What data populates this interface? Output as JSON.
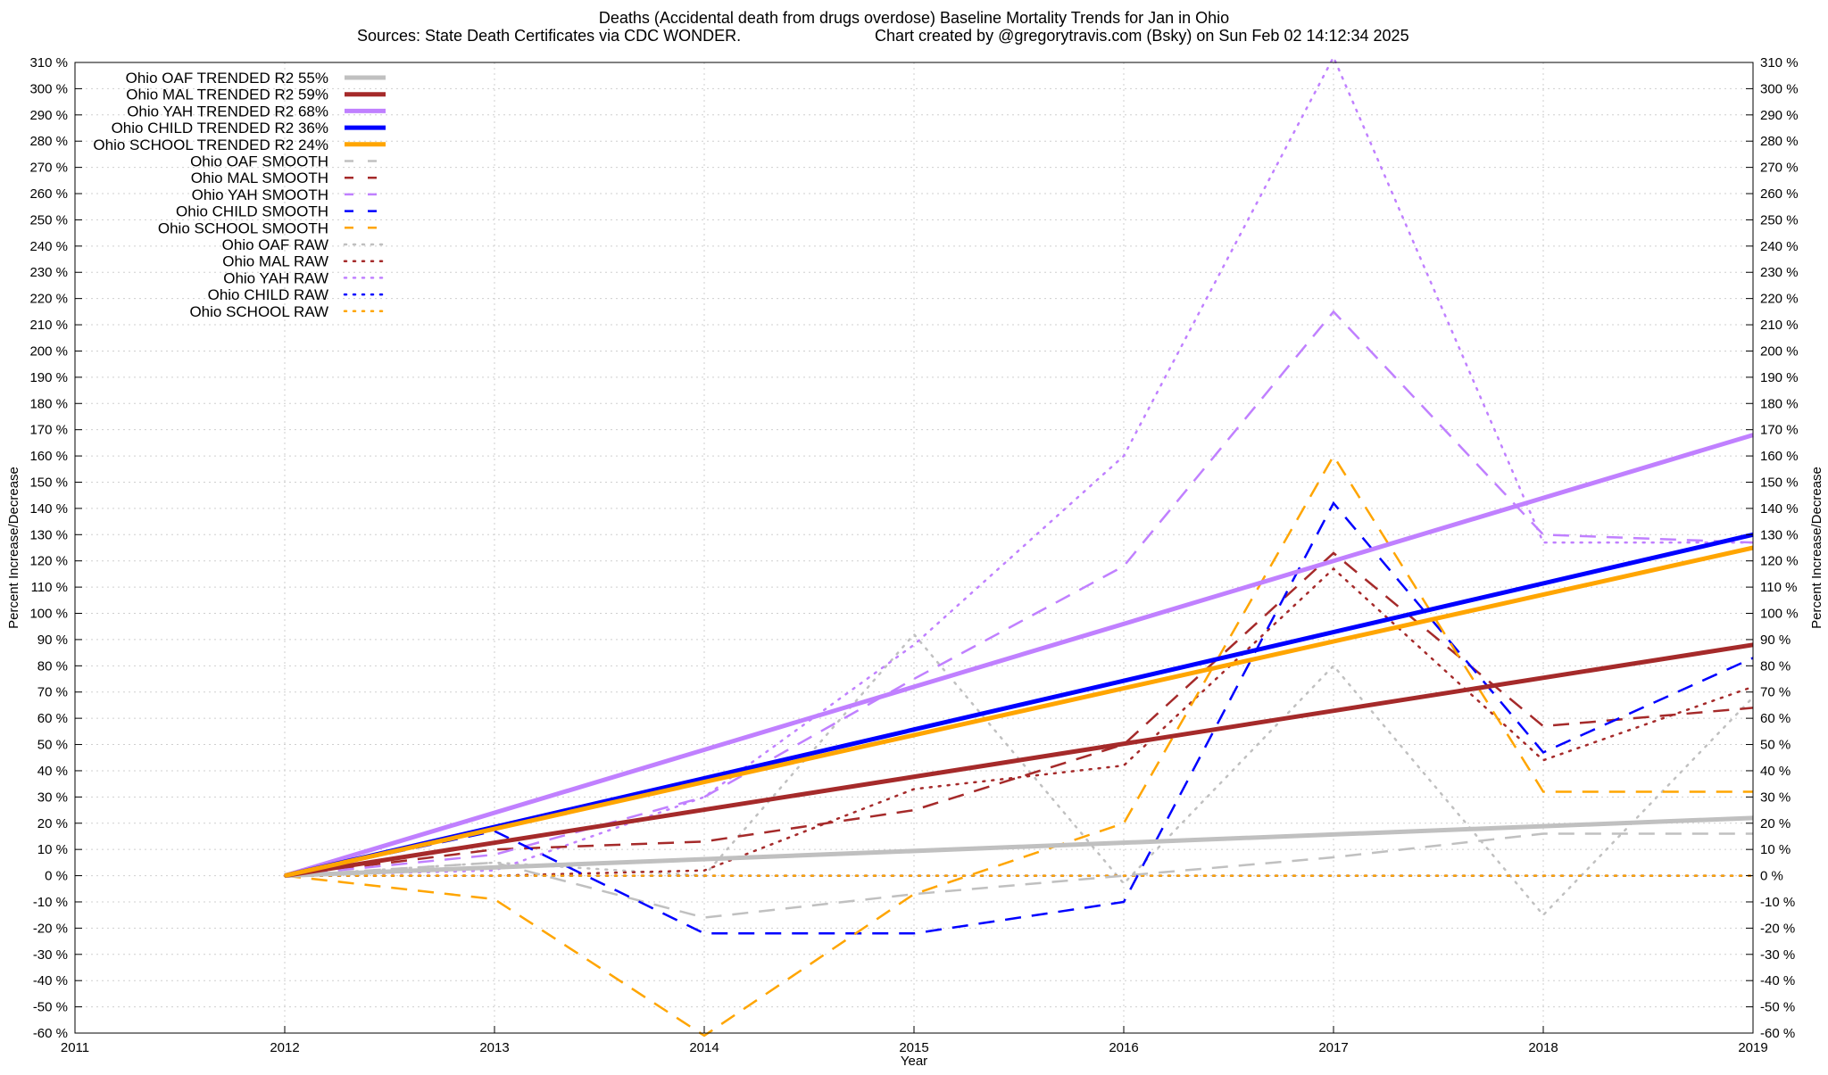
{
  "chart_data": {
    "type": "line",
    "title": "Deaths (Accidental death from drugs overdose)  Baseline Mortality Trends for Jan in Ohio",
    "subtitle_left": "Sources: State Death Certificates via CDC WONDER.",
    "subtitle_right": "Chart created by @gregorytravis.com (Bsky) on Sun Feb 02 14:12:34 2025",
    "xlabel": "Year",
    "ylabel_left": "Percent Increase/Decrease",
    "ylabel_right": "Percent Increase/Decrease",
    "xlim": [
      2011,
      2019
    ],
    "ylim": [
      -60,
      310
    ],
    "x_ticks": [
      "2011",
      "2012",
      "2013",
      "2014",
      "2015",
      "2016",
      "2017",
      "2018",
      "2019"
    ],
    "y_ticks": [
      "310 %",
      "300 %",
      "290 %",
      "280 %",
      "270 %",
      "260 %",
      "250 %",
      "240 %",
      "230 %",
      "220 %",
      "210 %",
      "200 %",
      "190 %",
      "180 %",
      "170 %",
      "160 %",
      "150 %",
      "140 %",
      "130 %",
      "120 %",
      "110 %",
      "100 %",
      "90 %",
      "80 %",
      "70 %",
      "60 %",
      "50 %",
      "40 %",
      "30 %",
      "20 %",
      "10 %",
      "0 %",
      "-10 %",
      "-20 %",
      "-30 %",
      "-40 %",
      "-50 %",
      "-60 %"
    ],
    "grid": true,
    "legend_position": "top-left",
    "series": [
      {
        "name": "Ohio OAF TRENDED R2  55%",
        "style": "solid",
        "color": "#c0c0c0",
        "x": [
          2012,
          2019
        ],
        "y": [
          0,
          22
        ]
      },
      {
        "name": "Ohio MAL TRENDED R2  59%",
        "style": "solid",
        "color": "#a52a2a",
        "x": [
          2012,
          2019
        ],
        "y": [
          0,
          88
        ]
      },
      {
        "name": "Ohio YAH TRENDED R2  68%",
        "style": "solid",
        "color": "#c080ff",
        "x": [
          2012,
          2019
        ],
        "y": [
          0,
          168
        ]
      },
      {
        "name": "Ohio CHILD TRENDED R2  36%",
        "style": "solid",
        "color": "#0000ff",
        "x": [
          2012,
          2019
        ],
        "y": [
          0,
          130
        ]
      },
      {
        "name": "Ohio SCHOOL TRENDED R2  24%",
        "style": "solid",
        "color": "#ffa500",
        "x": [
          2012,
          2019
        ],
        "y": [
          0,
          125
        ]
      },
      {
        "name": "Ohio OAF SMOOTH",
        "style": "dashed",
        "color": "#c0c0c0",
        "x": [
          2012,
          2013,
          2014,
          2015,
          2016,
          2017,
          2018,
          2019
        ],
        "y": [
          0,
          5,
          -16,
          -7,
          0,
          7,
          16,
          16
        ]
      },
      {
        "name": "Ohio MAL SMOOTH",
        "style": "dashed",
        "color": "#a52a2a",
        "x": [
          2012,
          2013,
          2014,
          2015,
          2016,
          2017,
          2018,
          2019
        ],
        "y": [
          0,
          10,
          13,
          25,
          50,
          123,
          57,
          64
        ]
      },
      {
        "name": "Ohio YAH SMOOTH",
        "style": "dashed",
        "color": "#c080ff",
        "x": [
          2012,
          2013,
          2014,
          2015,
          2016,
          2017,
          2018,
          2019
        ],
        "y": [
          0,
          8,
          30,
          75,
          118,
          215,
          130,
          127
        ]
      },
      {
        "name": "Ohio CHILD SMOOTH",
        "style": "dashed",
        "color": "#0000ff",
        "x": [
          2012,
          2013,
          2014,
          2015,
          2016,
          2017,
          2018,
          2019
        ],
        "y": [
          0,
          17,
          -22,
          -22,
          -10,
          142,
          47,
          83
        ]
      },
      {
        "name": "Ohio SCHOOL SMOOTH",
        "style": "dashed",
        "color": "#ffa500",
        "x": [
          2012,
          2013,
          2014,
          2015,
          2016,
          2017,
          2018,
          2019
        ],
        "y": [
          0,
          -9,
          -61,
          -7,
          20,
          160,
          32,
          32
        ]
      },
      {
        "name": "Ohio OAF RAW",
        "style": "dotted",
        "color": "#c0c0c0",
        "x": [
          2012,
          2013,
          2014,
          2015,
          2016,
          2017,
          2018,
          2019
        ],
        "y": [
          0,
          5,
          0,
          92,
          -3,
          80,
          -15,
          68
        ]
      },
      {
        "name": "Ohio MAL RAW",
        "style": "dotted",
        "color": "#a52a2a",
        "x": [
          2012,
          2013,
          2014,
          2015,
          2016,
          2017,
          2018,
          2019
        ],
        "y": [
          0,
          0,
          2,
          33,
          42,
          117,
          44,
          72
        ]
      },
      {
        "name": "Ohio YAH RAW",
        "style": "dotted",
        "color": "#c080ff",
        "x": [
          2012,
          2013,
          2014,
          2015,
          2016,
          2017,
          2018,
          2019
        ],
        "y": [
          0,
          2,
          30,
          88,
          160,
          312,
          127,
          127
        ]
      },
      {
        "name": "Ohio CHILD RAW",
        "style": "dotted",
        "color": "#0000ff",
        "x": [
          2012,
          2013,
          2014,
          2015,
          2016,
          2017,
          2018,
          2019
        ],
        "y": [
          0,
          0,
          0,
          0,
          0,
          0,
          0,
          0
        ]
      },
      {
        "name": "Ohio SCHOOL RAW",
        "style": "dotted",
        "color": "#ffa500",
        "x": [
          2012,
          2013,
          2014,
          2015,
          2016,
          2017,
          2018,
          2019
        ],
        "y": [
          0,
          0,
          0,
          0,
          0,
          0,
          0,
          0
        ]
      }
    ]
  }
}
